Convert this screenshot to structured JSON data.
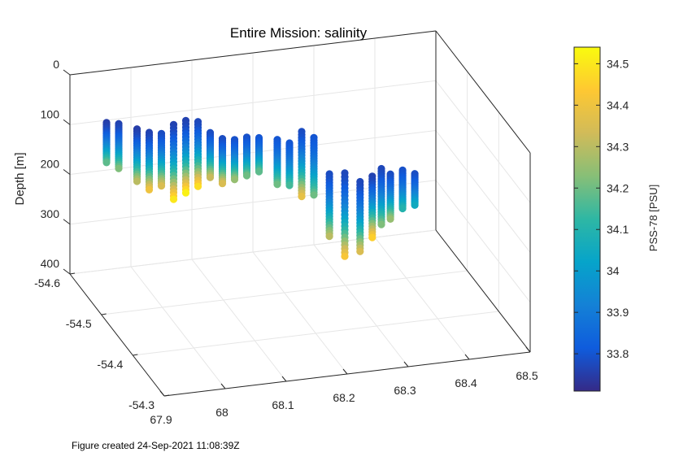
{
  "chart_data": {
    "type": "scatter",
    "title": "Entire Mission: salinity",
    "zlabel": "Depth [m]",
    "xlabel": "",
    "ylabel": "",
    "x_ticks": [
      "67.9",
      "68",
      "68.1",
      "68.2",
      "68.3",
      "68.4",
      "68.5"
    ],
    "y_ticks": [
      "-54.3",
      "-54.4",
      "-54.5",
      "-54.6"
    ],
    "z_ticks": [
      "0",
      "100",
      "200",
      "300",
      "400"
    ],
    "xlim": [
      67.9,
      68.5
    ],
    "ylim": [
      -54.6,
      -54.3
    ],
    "zlim": [
      0,
      400
    ],
    "z_reversed": true,
    "grid": true,
    "colormap": "parula",
    "colorbar": {
      "label": "PSS-78 [PSU]",
      "ticks": [
        "33.8",
        "33.9",
        "34",
        "34.1",
        "34.2",
        "34.3",
        "34.4",
        "34.5"
      ],
      "range": [
        33.71,
        34.54
      ],
      "colors": [
        "#352a87",
        "#0f5cdd",
        "#1481d6",
        "#06a4ca",
        "#2eb7a4",
        "#87bf77",
        "#d1bb59",
        "#fec832",
        "#f9fb0e"
      ]
    },
    "profiles": [
      {
        "lon": 67.96,
        "lat": -54.6,
        "top": 105,
        "bottom": 185,
        "s_top": 33.75,
        "s_bottom": 34.18
      },
      {
        "lon": 67.98,
        "lat": -54.6,
        "top": 110,
        "bottom": 200,
        "s_top": 33.76,
        "s_bottom": 34.22
      },
      {
        "lon": 68.01,
        "lat": -54.6,
        "top": 125,
        "bottom": 230,
        "s_top": 33.75,
        "s_bottom": 34.3
      },
      {
        "lon": 68.03,
        "lat": -54.6,
        "top": 135,
        "bottom": 250,
        "s_top": 33.76,
        "s_bottom": 34.4
      },
      {
        "lon": 68.05,
        "lat": -54.6,
        "top": 140,
        "bottom": 245,
        "s_top": 33.78,
        "s_bottom": 34.35
      },
      {
        "lon": 68.07,
        "lat": -54.6,
        "top": 125,
        "bottom": 275,
        "s_top": 33.76,
        "s_bottom": 34.5
      },
      {
        "lon": 68.09,
        "lat": -54.6,
        "top": 120,
        "bottom": 265,
        "s_top": 33.76,
        "s_bottom": 34.52
      },
      {
        "lon": 68.11,
        "lat": -54.6,
        "top": 125,
        "bottom": 255,
        "s_top": 33.77,
        "s_bottom": 34.48
      },
      {
        "lon": 68.13,
        "lat": -54.6,
        "top": 150,
        "bottom": 240,
        "s_top": 33.78,
        "s_bottom": 34.32
      },
      {
        "lon": 68.15,
        "lat": -54.6,
        "top": 165,
        "bottom": 255,
        "s_top": 33.78,
        "s_bottom": 34.35
      },
      {
        "lon": 68.17,
        "lat": -54.6,
        "top": 170,
        "bottom": 250,
        "s_top": 33.79,
        "s_bottom": 34.25
      },
      {
        "lon": 68.19,
        "lat": -54.6,
        "top": 168,
        "bottom": 245,
        "s_top": 33.79,
        "s_bottom": 34.2
      },
      {
        "lon": 68.21,
        "lat": -54.6,
        "top": 172,
        "bottom": 240,
        "s_top": 33.8,
        "s_bottom": 34.18
      },
      {
        "lon": 68.24,
        "lat": -54.6,
        "top": 180,
        "bottom": 270,
        "s_top": 33.8,
        "s_bottom": 34.2
      },
      {
        "lon": 68.26,
        "lat": -54.6,
        "top": 190,
        "bottom": 275,
        "s_top": 33.8,
        "s_bottom": 34.15
      },
      {
        "lon": 68.28,
        "lat": -54.6,
        "top": 170,
        "bottom": 300,
        "s_top": 33.78,
        "s_bottom": 34.38
      },
      {
        "lon": 68.3,
        "lat": -54.6,
        "top": 185,
        "bottom": 300,
        "s_top": 33.8,
        "s_bottom": 34.2
      },
      {
        "lon": 68.31,
        "lat": -54.57,
        "top": 235,
        "bottom": 360,
        "s_top": 33.78,
        "s_bottom": 34.3
      },
      {
        "lon": 68.33,
        "lat": -54.56,
        "top": 228,
        "bottom": 395,
        "s_top": 33.77,
        "s_bottom": 34.42
      },
      {
        "lon": 68.35,
        "lat": -54.55,
        "top": 240,
        "bottom": 380,
        "s_top": 33.77,
        "s_bottom": 34.35
      },
      {
        "lon": 68.37,
        "lat": -54.55,
        "top": 232,
        "bottom": 355,
        "s_top": 33.76,
        "s_bottom": 34.45
      },
      {
        "lon": 68.39,
        "lat": -54.56,
        "top": 228,
        "bottom": 340,
        "s_top": 33.77,
        "s_bottom": 34.22
      },
      {
        "lon": 68.41,
        "lat": -54.57,
        "top": 250,
        "bottom": 340,
        "s_top": 33.78,
        "s_bottom": 34.25
      },
      {
        "lon": 68.43,
        "lat": -54.57,
        "top": 245,
        "bottom": 322,
        "s_top": 33.79,
        "s_bottom": 34.1
      },
      {
        "lon": 68.45,
        "lat": -54.57,
        "top": 255,
        "bottom": 318,
        "s_top": 33.78,
        "s_bottom": 34.05
      }
    ]
  },
  "footer": {
    "text": "Figure created 24-Sep-2021 11:08:39Z"
  }
}
